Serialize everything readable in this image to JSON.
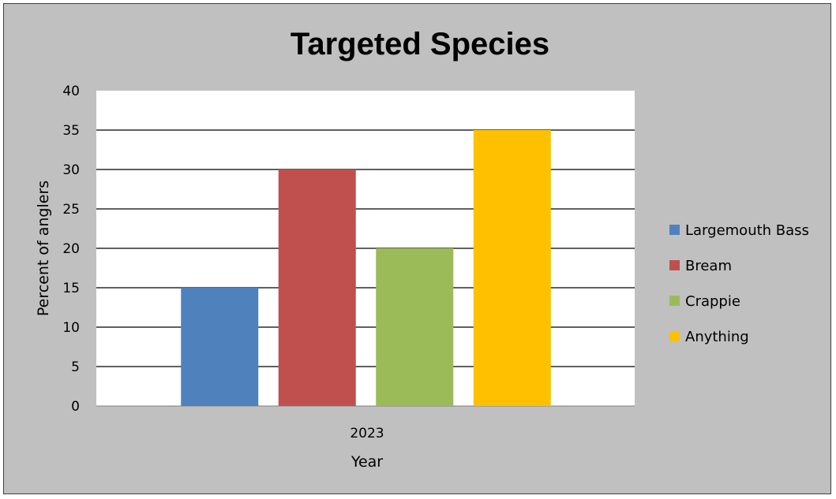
{
  "chart_data": {
    "type": "bar",
    "title": "Targeted Species",
    "xlabel": "Year",
    "ylabel": "Percent of anglers",
    "categories": [
      "2023"
    ],
    "series": [
      {
        "name": "Largemouth Bass",
        "values": [
          15
        ],
        "color": "#4f81bd"
      },
      {
        "name": "Bream",
        "values": [
          30
        ],
        "color": "#c0504d"
      },
      {
        "name": "Crappie",
        "values": [
          20
        ],
        "color": "#9bbb59"
      },
      {
        "name": "Anything",
        "values": [
          35
        ],
        "color": "#ffc000"
      }
    ],
    "ylim": [
      0,
      40
    ],
    "yticks": [
      "0",
      "5",
      "10",
      "15",
      "20",
      "25",
      "30",
      "35",
      "40"
    ],
    "grid": true,
    "legend": "right",
    "colors": {
      "frame_bg": "#c0c0c0",
      "plot_bg": "#ffffff",
      "grid": "#000000"
    }
  }
}
